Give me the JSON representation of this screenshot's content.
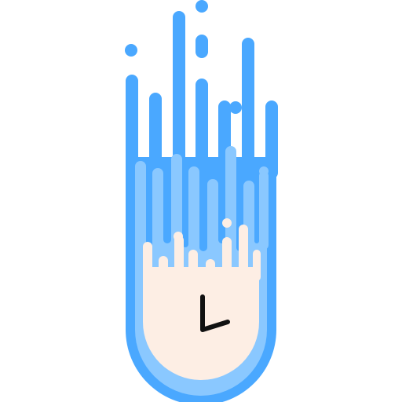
{
  "icon": {
    "name": "comet-clock-icon",
    "colors": {
      "outer_blue": "#4aa8ff",
      "mid_blue": "#8ac8ff",
      "cream": "#fdeee4",
      "stroke": "#111111",
      "background": "#ffffff"
    }
  }
}
